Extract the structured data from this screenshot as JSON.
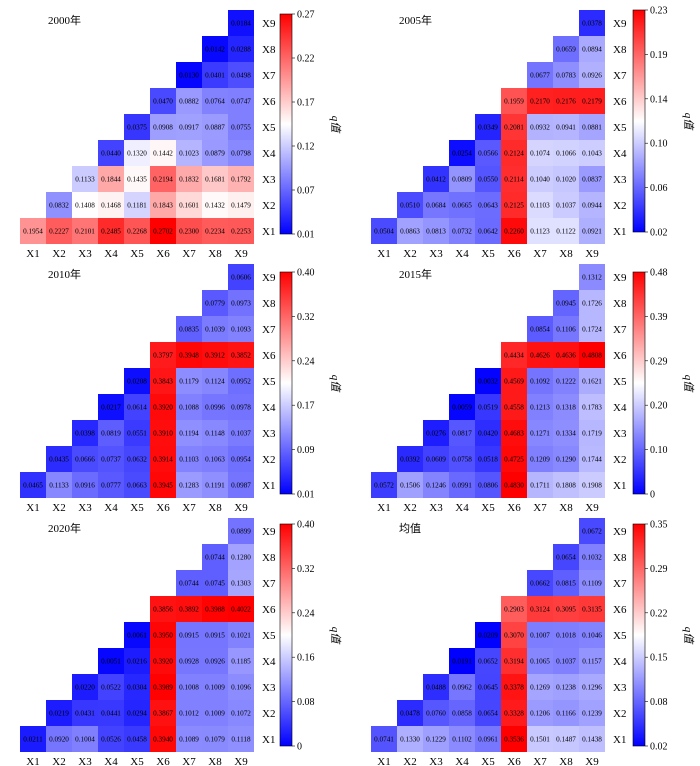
{
  "colors": {
    "low": "#0000ff",
    "mid": "#ffffff",
    "high": "#ff0000"
  },
  "colorbar_label": "q值",
  "axis_labels": [
    "X1",
    "X2",
    "X3",
    "X4",
    "X5",
    "X6",
    "X7",
    "X8",
    "X9"
  ],
  "chart_data": [
    {
      "type": "heatmap",
      "title": "2000年",
      "colorbar": {
        "min": 0.01,
        "max": 0.27,
        "ticks": [
          "0.27",
          "0.22",
          "0.17",
          "0.12",
          "0.07",
          "0.01"
        ]
      },
      "rows": [
        [
          "0.1954",
          "0.2227",
          "0.2101",
          "0.2485",
          "0.2268",
          "0.2702",
          "0.2300",
          "0.2234",
          "0.2253"
        ],
        [
          "0.0832",
          "0.1408",
          "0.1468",
          "0.1181",
          "0.1843",
          "0.1601",
          "0.1432",
          "0.1479"
        ],
        [
          "0.1133",
          "0.1844",
          "0.1435",
          "0.2194",
          "0.1832",
          "0.1681",
          "0.1792"
        ],
        [
          "0.0440",
          "0.1320",
          "0.1442",
          "0.1023",
          "0.0879",
          "0.0798"
        ],
        [
          "0.0375",
          "0.0908",
          "0.0917",
          "0.0887",
          "0.0755"
        ],
        [
          "0.0470",
          "0.0882",
          "0.0764",
          "0.0747"
        ],
        [
          "0.0130",
          "0.0401",
          "0.0498"
        ],
        [
          "0.0142",
          "0.0288"
        ],
        [
          "0.0184"
        ]
      ]
    },
    {
      "type": "heatmap",
      "title": "2005年",
      "colorbar": {
        "min": 0.02,
        "max": 0.23,
        "ticks": [
          "0.23",
          "0.19",
          "0.14",
          "0.10",
          "0.06",
          "0.02"
        ]
      },
      "rows": [
        [
          "0.0504",
          "0.0863",
          "0.0813",
          "0.0732",
          "0.0642",
          "0.2260",
          "0.1123",
          "0.1122",
          "0.0921"
        ],
        [
          "0.0510",
          "0.0684",
          "0.0665",
          "0.0643",
          "0.2125",
          "0.1103",
          "0.1037",
          "0.0944"
        ],
        [
          "0.0412",
          "0.0809",
          "0.0550",
          "0.2114",
          "0.1040",
          "0.1020",
          "0.0837"
        ],
        [
          "0.0254",
          "0.0566",
          "0.2124",
          "0.1074",
          "0.1066",
          "0.1043"
        ],
        [
          "0.0349",
          "0.2081",
          "0.0932",
          "0.0941",
          "0.0881"
        ],
        [
          "0.1959",
          "0.2170",
          "0.2176",
          "0.2179"
        ],
        [
          "0.0677",
          "0.0783",
          "0.0926"
        ],
        [
          "0.0659",
          "0.0894"
        ],
        [
          "0.0378"
        ]
      ]
    },
    {
      "type": "heatmap",
      "title": "2010年",
      "colorbar": {
        "min": 0.01,
        "max": 0.4,
        "ticks": [
          "0.40",
          "0.32",
          "0.24",
          "0.17",
          "0.09",
          "0.01"
        ]
      },
      "rows": [
        [
          "0.0465",
          "0.1133",
          "0.0916",
          "0.0777",
          "0.0663",
          "0.3945",
          "0.1283",
          "0.1191",
          "0.0987"
        ],
        [
          "0.0435",
          "0.0666",
          "0.0737",
          "0.0632",
          "0.3914",
          "0.1103",
          "0.1063",
          "0.0954"
        ],
        [
          "0.0398",
          "0.0819",
          "0.0551",
          "0.3910",
          "0.1194",
          "0.1148",
          "0.1037"
        ],
        [
          "0.0217",
          "0.0614",
          "0.3920",
          "0.1088",
          "0.0996",
          "0.0978"
        ],
        [
          "0.0208",
          "0.3843",
          "0.1179",
          "0.1124",
          "0.0952"
        ],
        [
          "0.3797",
          "0.3948",
          "0.3912",
          "0.3852"
        ],
        [
          "0.0835",
          "0.1039",
          "0.1093"
        ],
        [
          "0.0779",
          "0.0973"
        ],
        [
          "0.0606"
        ]
      ]
    },
    {
      "type": "heatmap",
      "title": "2015年",
      "colorbar": {
        "min": 0.0,
        "max": 0.48,
        "ticks": [
          "0.48",
          "0.39",
          "0.29",
          "0.20",
          "0.10",
          "0"
        ]
      },
      "rows": [
        [
          "0.0572",
          "0.1506",
          "0.1246",
          "0.0991",
          "0.0806",
          "0.4830",
          "0.1711",
          "0.1808",
          "0.1908"
        ],
        [
          "0.0392",
          "0.0609",
          "0.0758",
          "0.0518",
          "0.4725",
          "0.1209",
          "0.1290",
          "0.1744"
        ],
        [
          "0.0276",
          "0.0817",
          "0.0420",
          "0.4683",
          "0.1271",
          "0.1334",
          "0.1719"
        ],
        [
          "0.0059",
          "0.0519",
          "0.4558",
          "0.1213",
          "0.1318",
          "0.1783"
        ],
        [
          "0.0032",
          "0.4569",
          "0.1092",
          "0.1222",
          "0.1621"
        ],
        [
          "0.4434",
          "0.4626",
          "0.4636",
          "0.4808"
        ],
        [
          "0.0854",
          "0.1106",
          "0.1724"
        ],
        [
          "0.0945",
          "0.1726"
        ],
        [
          "0.1312"
        ]
      ]
    },
    {
      "type": "heatmap",
      "title": "2020年",
      "colorbar": {
        "min": 0.0,
        "max": 0.4,
        "ticks": [
          "0.40",
          "0.32",
          "0.24",
          "0.16",
          "0.08",
          "0"
        ]
      },
      "rows": [
        [
          "0.0211",
          "0.0920",
          "0.1004",
          "0.0526",
          "0.0458",
          "0.3940",
          "0.1089",
          "0.1079",
          "0.1118"
        ],
        [
          "0.0219",
          "0.0431",
          "0.0441",
          "0.0294",
          "0.3867",
          "0.1012",
          "0.1009",
          "0.1072"
        ],
        [
          "0.0220",
          "0.0522",
          "0.0304",
          "0.3989",
          "0.1008",
          "0.1009",
          "0.1096"
        ],
        [
          "0.0051",
          "0.0216",
          "0.3920",
          "0.0928",
          "0.0926",
          "0.1185"
        ],
        [
          "0.0061",
          "0.3950",
          "0.0915",
          "0.0915",
          "0.1021"
        ],
        [
          "0.3856",
          "0.3892",
          "0.3988",
          "0.4022"
        ],
        [
          "0.0744",
          "0.0745",
          "0.1303"
        ],
        [
          "0.0744",
          "0.1280"
        ],
        [
          "0.0899"
        ]
      ]
    },
    {
      "type": "heatmap",
      "title": "均值",
      "colorbar": {
        "min": 0.02,
        "max": 0.35,
        "ticks": [
          "0.35",
          "0.29",
          "0.22",
          "0.15",
          "0.08",
          "0.02"
        ]
      },
      "rows": [
        [
          "0.0741",
          "0.1330",
          "0.1229",
          "0.1102",
          "0.0961",
          "0.3536",
          "0.1501",
          "0.1487",
          "0.1438"
        ],
        [
          "0.0478",
          "0.0760",
          "0.0858",
          "0.0654",
          "0.3328",
          "0.1206",
          "0.1166",
          "0.1239"
        ],
        [
          "0.0488",
          "0.0962",
          "0.0645",
          "0.3378",
          "0.1269",
          "0.1238",
          "0.1296"
        ],
        [
          "0.0191",
          "0.0652",
          "0.3194",
          "0.1065",
          "0.1037",
          "0.1157"
        ],
        [
          "0.0209",
          "0.3070",
          "0.1007",
          "0.1018",
          "0.1046"
        ],
        [
          "0.2903",
          "0.3124",
          "0.3095",
          "0.3135"
        ],
        [
          "0.0662",
          "0.0815",
          "0.1109"
        ],
        [
          "0.0654",
          "0.1032"
        ],
        [
          "0.0672"
        ]
      ]
    }
  ]
}
